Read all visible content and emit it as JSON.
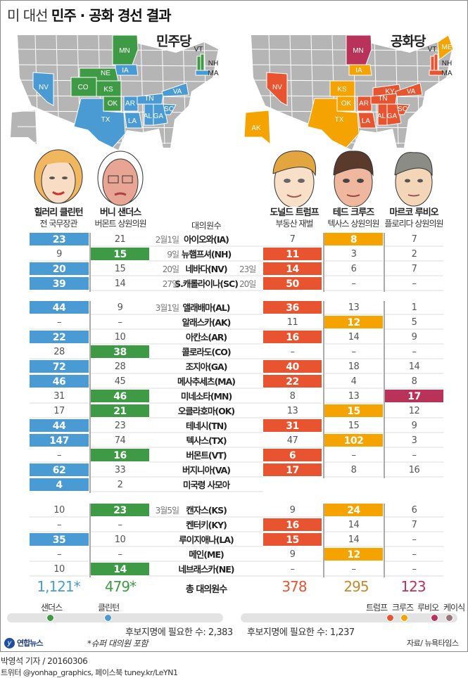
{
  "title": {
    "light": "미 대선",
    "bold": "민주 · 공화 경선 결과"
  },
  "colors": {
    "clinton": "#4a9bd4",
    "sanders": "#3f9a45",
    "trump": "#e8542f",
    "cruz": "#f5a300",
    "rubio": "#b8325a",
    "kasich": "#9b7479",
    "cruz_total": "#c48a2c",
    "map_gray": "#b5b5b5"
  },
  "maps": {
    "dem": {
      "label": "민주당",
      "states": [
        {
          "code": "MN",
          "winner": "sanders"
        },
        {
          "code": "IA",
          "winner": "clinton"
        },
        {
          "code": "NE",
          "winner": "sanders"
        },
        {
          "code": "CO",
          "winner": "sanders"
        },
        {
          "code": "KS",
          "winner": "sanders"
        },
        {
          "code": "OK",
          "winner": "sanders"
        },
        {
          "code": "NV",
          "winner": "clinton"
        },
        {
          "code": "TX",
          "winner": "clinton"
        },
        {
          "code": "AR",
          "winner": "clinton"
        },
        {
          "code": "LA",
          "winner": "clinton"
        },
        {
          "code": "TN",
          "winner": "clinton"
        },
        {
          "code": "AL",
          "winner": "clinton"
        },
        {
          "code": "GA",
          "winner": "clinton"
        },
        {
          "code": "SC",
          "winner": "clinton"
        },
        {
          "code": "VA",
          "winner": "clinton"
        },
        {
          "code": "VT",
          "winner": "sanders"
        },
        {
          "code": "NH",
          "winner": "sanders"
        },
        {
          "code": "MA",
          "winner": "clinton"
        }
      ]
    },
    "rep": {
      "label": "공화당",
      "states": [
        {
          "code": "MN",
          "winner": "rubio"
        },
        {
          "code": "IA",
          "winner": "cruz"
        },
        {
          "code": "KS",
          "winner": "cruz"
        },
        {
          "code": "OK",
          "winner": "cruz"
        },
        {
          "code": "TX",
          "winner": "cruz"
        },
        {
          "code": "AK",
          "winner": "cruz"
        },
        {
          "code": "ME",
          "winner": "cruz"
        },
        {
          "code": "NV",
          "winner": "trump"
        },
        {
          "code": "AR",
          "winner": "trump"
        },
        {
          "code": "LA",
          "winner": "trump"
        },
        {
          "code": "KY",
          "winner": "trump"
        },
        {
          "code": "TN",
          "winner": "trump"
        },
        {
          "code": "AL",
          "winner": "trump"
        },
        {
          "code": "GA",
          "winner": "trump"
        },
        {
          "code": "SC",
          "winner": "trump"
        },
        {
          "code": "VA",
          "winner": "trump"
        },
        {
          "code": "VT",
          "winner": "trump"
        },
        {
          "code": "NH",
          "winner": "trump"
        },
        {
          "code": "MA",
          "winner": "trump"
        }
      ]
    }
  },
  "candidates": {
    "clinton": {
      "name": "힐러리 클린턴",
      "role": "전 국무장관"
    },
    "sanders": {
      "name": "버니 샌더스",
      "role": "버몬트 상원의원"
    },
    "trump": {
      "name": "도널드 트럼프",
      "role": "부동산 재벌"
    },
    "cruz": {
      "name": "테드 크루즈",
      "role": "텍사스 상원의원"
    },
    "rubio": {
      "name": "마르코 루비오",
      "role": "플로리다 상원의원"
    }
  },
  "delegates_header": "대의원수",
  "chart_data": {
    "type": "table",
    "title": "미 대선 민주 · 공화 경선 결과",
    "columns": [
      "clinton",
      "sanders",
      "date",
      "state",
      "rep_date",
      "trump",
      "cruz",
      "rubio"
    ],
    "groups": [
      {
        "rows": [
          {
            "date": "2월1일",
            "state": "아이오와(IA)",
            "rep_date": "",
            "dem": [
              "23",
              "21"
            ],
            "dem_win": 0,
            "rep": [
              "7",
              "8",
              "7"
            ],
            "rep_win": 1
          },
          {
            "date": "9일",
            "state": "뉴햄프셔(NH)",
            "rep_date": "",
            "dem": [
              "9",
              "15"
            ],
            "dem_win": 1,
            "rep": [
              "11",
              "3",
              "2"
            ],
            "rep_win": 0
          },
          {
            "date": "20일",
            "state": "네바다(NV)",
            "rep_date": "23일",
            "dem": [
              "20",
              "15"
            ],
            "dem_win": 0,
            "rep": [
              "14",
              "6",
              "7"
            ],
            "rep_win": 0
          },
          {
            "date": "27일",
            "state": "S.캐롤라이나(SC)",
            "rep_date": "20일",
            "dem": [
              "39",
              "14"
            ],
            "dem_win": 0,
            "rep": [
              "50",
              "–",
              "–"
            ],
            "rep_win": 0
          }
        ]
      },
      {
        "rows": [
          {
            "date": "3월1일",
            "state": "앨래배마(AL)",
            "rep_date": "",
            "dem": [
              "44",
              "9"
            ],
            "dem_win": 0,
            "rep": [
              "36",
              "13",
              "1"
            ],
            "rep_win": 0
          },
          {
            "date": "",
            "state": "알래스카(AK)",
            "rep_date": "",
            "dem": [
              "–",
              "–"
            ],
            "dem_win": -1,
            "rep": [
              "11",
              "12",
              "5"
            ],
            "rep_win": 1
          },
          {
            "date": "",
            "state": "아칸소(AR)",
            "rep_date": "",
            "dem": [
              "22",
              "10"
            ],
            "dem_win": 0,
            "rep": [
              "16",
              "14",
              "9"
            ],
            "rep_win": 0
          },
          {
            "date": "",
            "state": "콜로라도(CO)",
            "rep_date": "",
            "dem": [
              "28",
              "38"
            ],
            "dem_win": 1,
            "rep": [
              "–",
              "–",
              "–"
            ],
            "rep_win": -1
          },
          {
            "date": "",
            "state": "조지아(GA)",
            "rep_date": "",
            "dem": [
              "72",
              "28"
            ],
            "dem_win": 0,
            "rep": [
              "40",
              "18",
              "14"
            ],
            "rep_win": 0
          },
          {
            "date": "",
            "state": "메사추세츠(MA)",
            "rep_date": "",
            "dem": [
              "46",
              "45"
            ],
            "dem_win": 0,
            "rep": [
              "22",
              "4",
              "8"
            ],
            "rep_win": 0
          },
          {
            "date": "",
            "state": "미네소타(MN)",
            "rep_date": "",
            "dem": [
              "31",
              "46"
            ],
            "dem_win": 1,
            "rep": [
              "8",
              "13",
              "17"
            ],
            "rep_win": 2
          },
          {
            "date": "",
            "state": "오클라호마(OK)",
            "rep_date": "",
            "dem": [
              "17",
              "21"
            ],
            "dem_win": 1,
            "rep": [
              "13",
              "15",
              "12"
            ],
            "rep_win": 1
          },
          {
            "date": "",
            "state": "테네시(TN)",
            "rep_date": "",
            "dem": [
              "44",
              "23"
            ],
            "dem_win": 0,
            "rep": [
              "31",
              "15",
              "9"
            ],
            "rep_win": 0
          },
          {
            "date": "",
            "state": "텍사스(TX)",
            "rep_date": "",
            "dem": [
              "147",
              "74"
            ],
            "dem_win": 0,
            "rep": [
              "47",
              "102",
              "3"
            ],
            "rep_win": 1
          },
          {
            "date": "",
            "state": "버몬트(VT)",
            "rep_date": "",
            "dem": [
              "–",
              "16"
            ],
            "dem_win": 1,
            "rep": [
              "6",
              "–",
              "–"
            ],
            "rep_win": 0
          },
          {
            "date": "",
            "state": "버지니아(VA)",
            "rep_date": "",
            "dem": [
              "62",
              "33"
            ],
            "dem_win": 0,
            "rep": [
              "17",
              "8",
              "16"
            ],
            "rep_win": 0
          },
          {
            "date": "",
            "state": "미국령 사모아",
            "rep_date": "",
            "dem": [
              "4",
              "2"
            ],
            "dem_win": 0,
            "rep": null,
            "rep_win": -1
          }
        ]
      },
      {
        "rows": [
          {
            "date": "3월5일",
            "state": "캔자스(KS)",
            "rep_date": "",
            "dem": [
              "10",
              "23"
            ],
            "dem_win": 1,
            "rep": [
              "9",
              "24",
              "6"
            ],
            "rep_win": 1
          },
          {
            "date": "",
            "state": "켄터키(KY)",
            "rep_date": "",
            "dem": [
              "–",
              "–"
            ],
            "dem_win": -1,
            "rep": [
              "16",
              "14",
              "7"
            ],
            "rep_win": 0
          },
          {
            "date": "",
            "state": "루이지애나(LA)",
            "rep_date": "",
            "dem": [
              "35",
              "10"
            ],
            "dem_win": 0,
            "rep": [
              "15",
              "14",
              "–"
            ],
            "rep_win": 0
          },
          {
            "date": "",
            "state": "메인(ME)",
            "rep_date": "",
            "dem": [
              "–",
              "–"
            ],
            "dem_win": -1,
            "rep": [
              "9",
              "12",
              "–"
            ],
            "rep_win": 1
          },
          {
            "date": "",
            "state": "네브래스카(NE)",
            "rep_date": "",
            "dem": [
              "10",
              "14"
            ],
            "dem_win": 1,
            "rep": [
              "–",
              "–",
              "–"
            ],
            "rep_win": -1
          }
        ]
      }
    ],
    "totals": {
      "label": "총 대의원수",
      "clinton": "1,121*",
      "sanders": "479*",
      "trump": "378",
      "cruz": "295",
      "rubio": "123"
    }
  },
  "progress": {
    "dem": {
      "labels": {
        "sanders": "샌더스",
        "clinton": "클린턴"
      },
      "values": {
        "sanders": 479,
        "clinton": 1121
      },
      "needed": 2383,
      "needed_text": "후보지명에 필요한 수: 2,383"
    },
    "rep": {
      "labels": {
        "trump": "트럼프",
        "cruz": "크루즈",
        "rubio": "루비오",
        "kasich": "케이식"
      },
      "values": {
        "trump": 378,
        "cruz": 295,
        "rubio": 123
      },
      "needed": 1237,
      "needed_text": "후보지명에 필요한 수: 1,237"
    }
  },
  "footer": {
    "logo": "연합뉴스",
    "note": "*슈퍼 대의원 포함",
    "source": "자료/ 뉴욕타임스",
    "byline": "박영석 기자 / 20160306",
    "social": "트위터 @yonhap_graphics, 페이스북 tuney.kr/LeYN1"
  }
}
